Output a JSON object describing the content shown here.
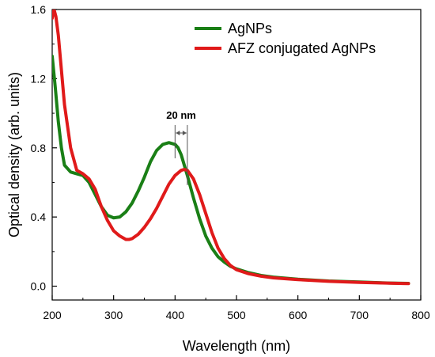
{
  "chart_data": {
    "type": "line",
    "title": "",
    "xlabel": "Wavelength (nm)",
    "ylabel": "Optical density (arb. units)",
    "xlim": [
      200,
      800
    ],
    "ylim": [
      -0.08,
      1.6
    ],
    "x_ticks": [
      200,
      300,
      400,
      500,
      600,
      700,
      800
    ],
    "x_tick_labels": [
      "200",
      "300",
      "400",
      "500",
      "600",
      "700",
      "800"
    ],
    "y_ticks": [
      0.0,
      0.4,
      0.8,
      1.2,
      1.6
    ],
    "y_tick_labels": [
      "0.0",
      "0.4",
      "0.8",
      "1.2",
      "1.6"
    ],
    "grid": false,
    "legend_position": "top-right",
    "series": [
      {
        "name": "AgNPs",
        "color": "#1a7f16",
        "x": [
          200,
          205,
          210,
          215,
          220,
          230,
          240,
          250,
          260,
          270,
          280,
          290,
          300,
          310,
          320,
          330,
          340,
          350,
          360,
          370,
          380,
          390,
          400,
          405,
          410,
          420,
          430,
          440,
          450,
          460,
          470,
          480,
          490,
          500,
          520,
          540,
          560,
          600,
          650,
          700,
          750,
          780
        ],
        "y": [
          1.33,
          1.15,
          0.95,
          0.8,
          0.7,
          0.66,
          0.65,
          0.64,
          0.6,
          0.53,
          0.46,
          0.41,
          0.395,
          0.4,
          0.43,
          0.48,
          0.55,
          0.63,
          0.72,
          0.785,
          0.82,
          0.83,
          0.82,
          0.8,
          0.76,
          0.64,
          0.51,
          0.39,
          0.29,
          0.22,
          0.17,
          0.14,
          0.115,
          0.1,
          0.078,
          0.062,
          0.052,
          0.04,
          0.03,
          0.024,
          0.018,
          0.016
        ]
      },
      {
        "name": "AFZ conjugated AgNPs",
        "color": "#e01a1a",
        "x": [
          200,
          203,
          206,
          210,
          215,
          220,
          230,
          240,
          250,
          260,
          270,
          280,
          290,
          300,
          310,
          320,
          325,
          330,
          340,
          350,
          360,
          370,
          380,
          390,
          400,
          410,
          415,
          420,
          430,
          440,
          450,
          460,
          470,
          480,
          490,
          500,
          520,
          540,
          560,
          600,
          650,
          700,
          750,
          780
        ],
        "y": [
          1.55,
          1.6,
          1.56,
          1.45,
          1.25,
          1.05,
          0.8,
          0.67,
          0.65,
          0.62,
          0.56,
          0.46,
          0.38,
          0.32,
          0.29,
          0.27,
          0.27,
          0.275,
          0.3,
          0.34,
          0.39,
          0.45,
          0.52,
          0.59,
          0.64,
          0.67,
          0.675,
          0.67,
          0.62,
          0.53,
          0.42,
          0.31,
          0.22,
          0.16,
          0.12,
          0.095,
          0.072,
          0.058,
          0.048,
          0.038,
          0.028,
          0.022,
          0.017,
          0.015
        ]
      }
    ],
    "annotation": {
      "text": "20 nm",
      "x_from": 400,
      "x_to": 420
    }
  }
}
